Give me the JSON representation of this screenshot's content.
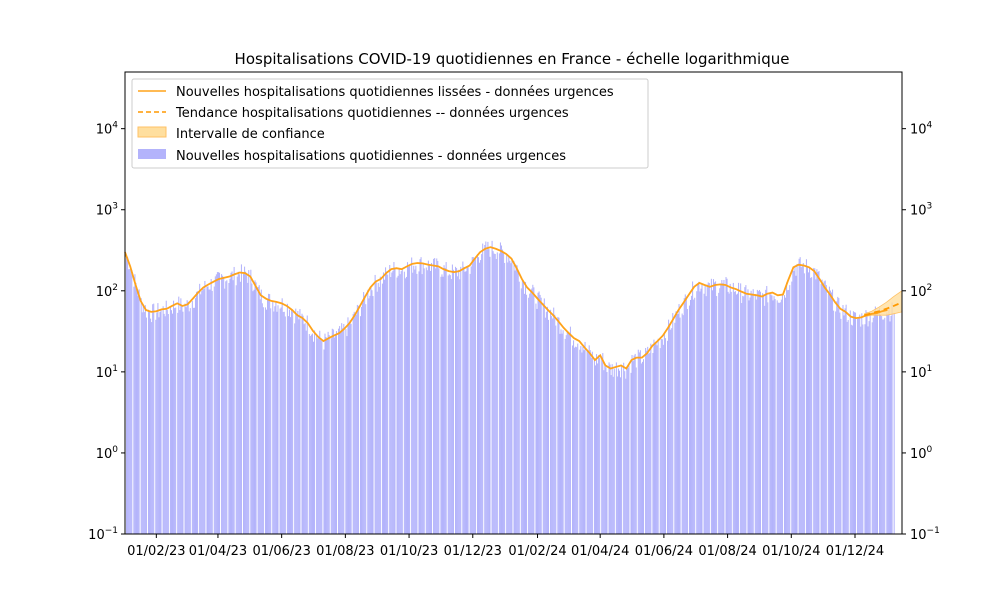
{
  "chart_data": {
    "type": "bar",
    "title": "Hospitalisations COVID-19 quotidiennes en France - échelle logarithmique",
    "xlabel": "",
    "ylabel": "",
    "y_scale": "log",
    "ylim": [
      0.1,
      50000
    ],
    "xlim": [
      "2023-01-02",
      "2025-01-15"
    ],
    "x_ticks": [
      {
        "date": "2023-02-01",
        "label": "01/02/23"
      },
      {
        "date": "2023-04-01",
        "label": "01/04/23"
      },
      {
        "date": "2023-06-01",
        "label": "01/06/23"
      },
      {
        "date": "2023-08-01",
        "label": "01/08/23"
      },
      {
        "date": "2023-10-01",
        "label": "01/10/23"
      },
      {
        "date": "2023-12-01",
        "label": "01/12/23"
      },
      {
        "date": "2024-02-01",
        "label": "01/02/24"
      },
      {
        "date": "2024-04-01",
        "label": "01/04/24"
      },
      {
        "date": "2024-06-01",
        "label": "01/06/24"
      },
      {
        "date": "2024-08-01",
        "label": "01/08/24"
      },
      {
        "date": "2024-10-01",
        "label": "01/10/24"
      },
      {
        "date": "2024-12-01",
        "label": "01/12/24"
      }
    ],
    "y_ticks": [
      {
        "value": 0.1,
        "base": "10",
        "exp": "−1"
      },
      {
        "value": 1,
        "base": "10",
        "exp": "0"
      },
      {
        "value": 10,
        "base": "10",
        "exp": "1"
      },
      {
        "value": 100,
        "base": "10",
        "exp": "2"
      },
      {
        "value": 1000,
        "base": "10",
        "exp": "3"
      },
      {
        "value": 10000,
        "base": "10",
        "exp": "4"
      }
    ],
    "legend": {
      "position": "upper-left",
      "entries": [
        {
          "label": "Nouvelles hospitalisations quotidiennes lissées - données urgences",
          "style": "line-solid"
        },
        {
          "label": "Tendance hospitalisations quotidiennes -- données urgences",
          "style": "line-dashed"
        },
        {
          "label": "Intervalle de confiance",
          "style": "band"
        },
        {
          "label": "Nouvelles hospitalisations quotidiennes - données urgences",
          "style": "bar"
        }
      ]
    },
    "colors": {
      "bars": "#b3b3fb",
      "smoothed": "#ffa31a",
      "trend": "#ff9900",
      "band_fill": "#ffdf9f",
      "band_edge": "#ffc266"
    },
    "series": [
      {
        "name": "Nouvelles hospitalisations quotidiennes lissées - données urgences",
        "style": "solid",
        "points": [
          [
            "2023-01-02",
            300
          ],
          [
            "2023-01-07",
            200
          ],
          [
            "2023-01-12",
            120
          ],
          [
            "2023-01-17",
            75
          ],
          [
            "2023-01-22",
            58
          ],
          [
            "2023-01-27",
            55
          ],
          [
            "2023-02-01",
            56
          ],
          [
            "2023-02-06",
            59
          ],
          [
            "2023-02-11",
            60
          ],
          [
            "2023-02-16",
            65
          ],
          [
            "2023-02-21",
            70
          ],
          [
            "2023-02-26",
            65
          ],
          [
            "2023-03-03",
            68
          ],
          [
            "2023-03-08",
            80
          ],
          [
            "2023-03-13",
            95
          ],
          [
            "2023-03-18",
            110
          ],
          [
            "2023-03-23",
            120
          ],
          [
            "2023-03-28",
            130
          ],
          [
            "2023-04-02",
            140
          ],
          [
            "2023-04-07",
            145
          ],
          [
            "2023-04-12",
            150
          ],
          [
            "2023-04-17",
            160
          ],
          [
            "2023-04-22",
            168
          ],
          [
            "2023-04-27",
            165
          ],
          [
            "2023-05-02",
            150
          ],
          [
            "2023-05-07",
            115
          ],
          [
            "2023-05-12",
            88
          ],
          [
            "2023-05-17",
            80
          ],
          [
            "2023-05-22",
            75
          ],
          [
            "2023-05-27",
            73
          ],
          [
            "2023-06-01",
            70
          ],
          [
            "2023-06-06",
            65
          ],
          [
            "2023-06-11",
            58
          ],
          [
            "2023-06-16",
            50
          ],
          [
            "2023-06-21",
            46
          ],
          [
            "2023-06-26",
            40
          ],
          [
            "2023-07-01",
            32
          ],
          [
            "2023-07-06",
            27
          ],
          [
            "2023-07-11",
            24
          ],
          [
            "2023-07-16",
            26
          ],
          [
            "2023-07-21",
            28
          ],
          [
            "2023-07-26",
            30
          ],
          [
            "2023-07-31",
            34
          ],
          [
            "2023-08-05",
            40
          ],
          [
            "2023-08-10",
            50
          ],
          [
            "2023-08-15",
            65
          ],
          [
            "2023-08-20",
            85
          ],
          [
            "2023-08-25",
            110
          ],
          [
            "2023-08-30",
            130
          ],
          [
            "2023-09-04",
            140
          ],
          [
            "2023-09-09",
            165
          ],
          [
            "2023-09-14",
            185
          ],
          [
            "2023-09-19",
            190
          ],
          [
            "2023-09-24",
            185
          ],
          [
            "2023-09-29",
            200
          ],
          [
            "2023-10-04",
            215
          ],
          [
            "2023-10-09",
            220
          ],
          [
            "2023-10-14",
            218
          ],
          [
            "2023-10-19",
            210
          ],
          [
            "2023-10-24",
            205
          ],
          [
            "2023-10-29",
            200
          ],
          [
            "2023-11-03",
            185
          ],
          [
            "2023-11-08",
            175
          ],
          [
            "2023-11-13",
            170
          ],
          [
            "2023-11-18",
            175
          ],
          [
            "2023-11-23",
            190
          ],
          [
            "2023-11-28",
            205
          ],
          [
            "2023-12-03",
            250
          ],
          [
            "2023-12-08",
            300
          ],
          [
            "2023-12-13",
            330
          ],
          [
            "2023-12-18",
            345
          ],
          [
            "2023-12-23",
            330
          ],
          [
            "2023-12-28",
            310
          ],
          [
            "2024-01-02",
            285
          ],
          [
            "2024-01-07",
            250
          ],
          [
            "2024-01-12",
            190
          ],
          [
            "2024-01-17",
            140
          ],
          [
            "2024-01-22",
            110
          ],
          [
            "2024-01-27",
            95
          ],
          [
            "2024-02-01",
            80
          ],
          [
            "2024-02-06",
            68
          ],
          [
            "2024-02-11",
            58
          ],
          [
            "2024-02-16",
            50
          ],
          [
            "2024-02-21",
            42
          ],
          [
            "2024-02-26",
            35
          ],
          [
            "2024-03-02",
            30
          ],
          [
            "2024-03-07",
            26
          ],
          [
            "2024-03-12",
            24
          ],
          [
            "2024-03-17",
            20
          ],
          [
            "2024-03-22",
            17
          ],
          [
            "2024-03-27",
            14
          ],
          [
            "2024-04-01",
            16
          ],
          [
            "2024-04-06",
            12
          ],
          [
            "2024-04-11",
            11
          ],
          [
            "2024-04-16",
            11.5
          ],
          [
            "2024-04-21",
            12
          ],
          [
            "2024-04-26",
            11
          ],
          [
            "2024-05-01",
            14
          ],
          [
            "2024-05-06",
            15
          ],
          [
            "2024-05-11",
            15
          ],
          [
            "2024-05-16",
            17
          ],
          [
            "2024-05-21",
            21
          ],
          [
            "2024-05-26",
            24
          ],
          [
            "2024-05-31",
            28
          ],
          [
            "2024-06-05",
            35
          ],
          [
            "2024-06-10",
            45
          ],
          [
            "2024-06-15",
            58
          ],
          [
            "2024-06-20",
            72
          ],
          [
            "2024-06-25",
            90
          ],
          [
            "2024-06-30",
            112
          ],
          [
            "2024-07-05",
            125
          ],
          [
            "2024-07-10",
            118
          ],
          [
            "2024-07-15",
            112
          ],
          [
            "2024-07-20",
            118
          ],
          [
            "2024-07-25",
            120
          ],
          [
            "2024-07-30",
            118
          ],
          [
            "2024-08-04",
            110
          ],
          [
            "2024-08-09",
            105
          ],
          [
            "2024-08-14",
            98
          ],
          [
            "2024-08-19",
            92
          ],
          [
            "2024-08-24",
            90
          ],
          [
            "2024-08-29",
            88
          ],
          [
            "2024-09-03",
            85
          ],
          [
            "2024-09-08",
            92
          ],
          [
            "2024-09-13",
            95
          ],
          [
            "2024-09-18",
            88
          ],
          [
            "2024-09-23",
            90
          ],
          [
            "2024-09-28",
            135
          ],
          [
            "2024-10-03",
            195
          ],
          [
            "2024-10-08",
            210
          ],
          [
            "2024-10-13",
            205
          ],
          [
            "2024-10-18",
            195
          ],
          [
            "2024-10-23",
            175
          ],
          [
            "2024-10-28",
            140
          ],
          [
            "2024-11-02",
            110
          ],
          [
            "2024-11-07",
            90
          ],
          [
            "2024-11-12",
            72
          ],
          [
            "2024-11-17",
            60
          ],
          [
            "2024-11-22",
            55
          ],
          [
            "2024-11-27",
            48
          ],
          [
            "2024-12-02",
            46
          ],
          [
            "2024-12-07",
            47
          ],
          [
            "2024-12-12",
            50
          ],
          [
            "2024-12-17",
            52
          ],
          [
            "2024-12-22",
            53
          ],
          [
            "2024-12-27",
            56
          ],
          [
            "2025-01-01",
            58
          ]
        ]
      },
      {
        "name": "Tendance hospitalisations quotidiennes -- données urgences",
        "style": "dashed",
        "points": [
          [
            "2024-12-10",
            50
          ],
          [
            "2024-12-17",
            53
          ],
          [
            "2024-12-24",
            56
          ],
          [
            "2024-12-31",
            60
          ],
          [
            "2025-01-07",
            65
          ],
          [
            "2025-01-15",
            72
          ]
        ]
      }
    ],
    "confidence_interval": [
      [
        "2024-12-10",
        48,
        52
      ],
      [
        "2024-12-17",
        50,
        56
      ],
      [
        "2024-12-24",
        50,
        63
      ],
      [
        "2024-12-31",
        50,
        72
      ],
      [
        "2025-01-07",
        52,
        85
      ],
      [
        "2025-01-15",
        55,
        100
      ]
    ],
    "weekly_gaps": [
      "2023-01-02",
      "2025-01-08"
    ]
  }
}
